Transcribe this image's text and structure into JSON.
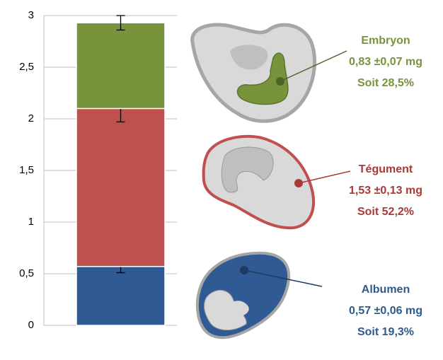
{
  "chart_data": {
    "type": "bar",
    "stacked": true,
    "categories": [
      null
    ],
    "series": [
      {
        "name": "Albumen",
        "color": "#2f5a93",
        "text_color": "#2e5a8c",
        "values": [
          0.57
        ],
        "errors": [
          0.06
        ],
        "value_labels": [
          "0,57 ±0,06 mg"
        ],
        "share_label": "Soit 19,3%"
      },
      {
        "name": "Tégument",
        "color": "#c0504d",
        "text_color": "#a83a37",
        "values": [
          1.53
        ],
        "errors": [
          0.13
        ],
        "value_labels": [
          "1,53 ±0,13 mg"
        ],
        "share_label": "Soit 52,2%"
      },
      {
        "name": "Embryon",
        "color": "#77933c",
        "text_color": "#77933c",
        "values": [
          0.83
        ],
        "errors": [
          0.07
        ],
        "value_labels": [
          "0,83 ±0,07 mg"
        ],
        "share_label": "Soit 28,5%"
      }
    ],
    "ylim": [
      0,
      3
    ],
    "yticks": [
      0,
      {
        "value": 0.5,
        "label": "0,5"
      },
      1,
      {
        "value": 1.5,
        "label": "1,5"
      },
      2,
      {
        "value": 2.5,
        "label": "2,5"
      },
      3
    ],
    "grid": true
  }
}
